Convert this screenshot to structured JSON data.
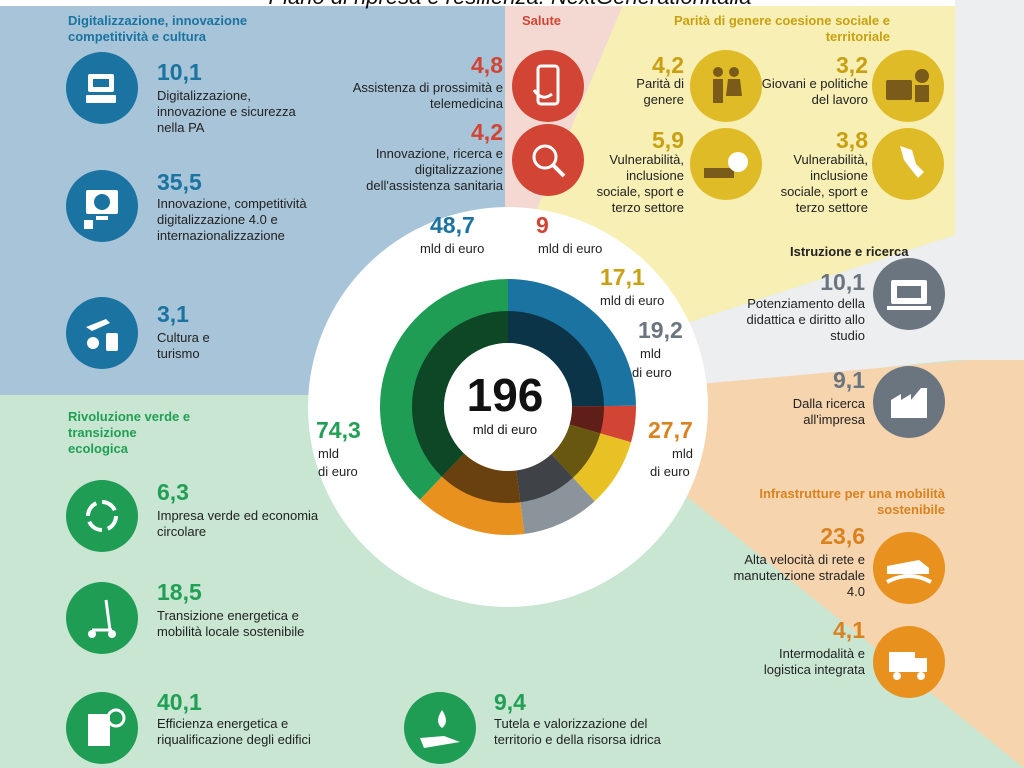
{
  "header": {
    "title": "Piano di ripresa e resilienza. NextGenerationItalia"
  },
  "colors": {
    "digital": "#1a73a0",
    "health": "#d24535",
    "gender": "#e8c224",
    "education": "#8b939b",
    "infra": "#e8911e",
    "green": "#1f9d55",
    "bg_digital": "#a8c4d8",
    "bg_health": "#f4d9d2",
    "bg_gender": "#f7efb4",
    "bg_education": "#eceeef",
    "bg_infra": "#f6d4ad",
    "bg_green": "#c8e6d2"
  },
  "total": {
    "value": "196",
    "unit": "mld di euro"
  },
  "sections": {
    "digital": "Digitalizzazione, innovazione competitività e cultura",
    "health": "Salute",
    "gender": "Parità di genere coesione sociale e territoriale",
    "education": "Istruzione e ricerca",
    "infra": "Infrastrutture per una mobilità sostenibile",
    "green": "Rivoluzione verde e transizione ecologica"
  },
  "totals": {
    "digital": "48,7",
    "health": "9",
    "gender": "17,1",
    "education": "19,2",
    "infra": "27,7",
    "green": "74,3",
    "unit": "mld di euro",
    "unit_a": "mld",
    "unit_b": "di euro"
  },
  "items": {
    "d1": {
      "value": "10,1",
      "label": "Digitalizzazione, innovazione e sicurezza nella PA",
      "icon": "computer-icon"
    },
    "d2": {
      "value": "35,5",
      "label": "Innovazione, competitività digitalizzazione 4.0 e internazionalizzazione",
      "icon": "globe-screen-icon"
    },
    "d3": {
      "value": "3,1",
      "label": "Cultura e turismo",
      "icon": "travel-icon"
    },
    "h1": {
      "value": "4,8",
      "label": "Assistenza di prossimità e telemedicina",
      "icon": "telemedicine-icon"
    },
    "h2": {
      "value": "4,2",
      "label": "Innovazione, ricerca e digitalizzazione dell'assistenza sanitaria",
      "icon": "virus-search-icon"
    },
    "g1": {
      "value": "4,2",
      "label": "Parità di genere",
      "icon": "man-woman-icon"
    },
    "g2": {
      "value": "3,2",
      "label": "Giovani e politiche del lavoro",
      "icon": "briefcase-icon"
    },
    "g3": {
      "value": "5,9",
      "label": "Vulnerabilità, inclusione sociale, sport e terzo settore",
      "icon": "ball-icon"
    },
    "g4": {
      "value": "3,8",
      "label": "Vulnerabilità, inclusione sociale, sport e terzo settore",
      "icon": "italy-map-icon"
    },
    "e1": {
      "value": "10,1",
      "label": "Potenziamento della didattica e diritto allo studio",
      "icon": "laptop-books-icon"
    },
    "e2": {
      "value": "9,1",
      "label": "Dalla ricerca all'impresa",
      "icon": "factory-icon"
    },
    "i1": {
      "value": "23,6",
      "label": "Alta velocità di rete e manutenzione stradale 4.0",
      "icon": "train-icon"
    },
    "i2": {
      "value": "4,1",
      "label": "Intermodalità e logistica integrata",
      "icon": "truck-icon"
    },
    "v1": {
      "value": "6,3",
      "label": "Impresa verde ed economia circolare",
      "icon": "recycle-icon"
    },
    "v2": {
      "value": "18,5",
      "label": "Transizione energetica e mobilità locale sostenibile",
      "icon": "scooter-icon"
    },
    "v3": {
      "value": "40,1",
      "label": "Efficienza energetica e riqualificazione degli edifici",
      "icon": "building-icon"
    },
    "v4": {
      "value": "9,4",
      "label": "Tutela e valorizzazione del territorio e della risorsa idrica",
      "icon": "water-hand-icon"
    }
  },
  "chart_data": {
    "type": "pie",
    "title": "",
    "total": 196,
    "unit": "mld di euro",
    "categories": [
      "Digitalizzazione, innovazione competitività e cultura",
      "Salute",
      "Parità di genere coesione sociale e territoriale",
      "Istruzione e ricerca",
      "Infrastrutture per una mobilità sostenibile",
      "Rivoluzione verde e transizione ecologica"
    ],
    "values": [
      48.7,
      9,
      17.1,
      19.2,
      27.7,
      74.3
    ],
    "colors": [
      "#1a73a0",
      "#d24535",
      "#e8c224",
      "#8b939b",
      "#e8911e",
      "#1f9d55"
    ],
    "subcategories": [
      {
        "name": "Digitalizzazione, innovazione e sicurezza nella PA",
        "value": 10.1
      },
      {
        "name": "Innovazione, competitività digitalizzazione 4.0 e internazionalizzazione",
        "value": 35.5
      },
      {
        "name": "Cultura e turismo",
        "value": 3.1
      },
      {
        "name": "Assistenza di prossimità e telemedicina",
        "value": 4.8
      },
      {
        "name": "Innovazione, ricerca e digitalizzazione dell'assistenza sanitaria",
        "value": 4.2
      },
      {
        "name": "Parità di genere",
        "value": 4.2
      },
      {
        "name": "Giovani e politiche del lavoro",
        "value": 3.2
      },
      {
        "name": "Vulnerabilità, inclusione sociale, sport e terzo settore",
        "value": 5.9
      },
      {
        "name": "Vulnerabilità, inclusione sociale, sport e terzo settore",
        "value": 3.8
      },
      {
        "name": "Potenziamento della didattica e diritto allo studio",
        "value": 10.1
      },
      {
        "name": "Dalla ricerca all'impresa",
        "value": 9.1
      },
      {
        "name": "Alta velocità di rete e manutenzione stradale 4.0",
        "value": 23.6
      },
      {
        "name": "Intermodalità e logistica integrata",
        "value": 4.1
      },
      {
        "name": "Impresa verde ed economia circolare",
        "value": 6.3
      },
      {
        "name": "Transizione energetica e mobilità locale sostenibile",
        "value": 18.5
      },
      {
        "name": "Efficienza energetica e riqualificazione degli edifici",
        "value": 40.1
      },
      {
        "name": "Tutela e valorizzazione del territorio e della risorsa idrica",
        "value": 9.4
      }
    ]
  }
}
